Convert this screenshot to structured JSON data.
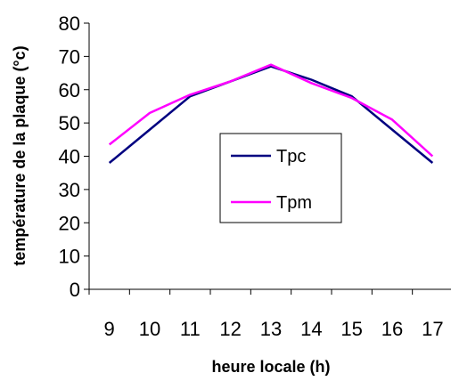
{
  "chart_data": {
    "type": "line",
    "xlabel": "heure locale (h)",
    "ylabel": "température de la plaque (°c)",
    "x": [
      9,
      10,
      11,
      12,
      13,
      14,
      15,
      16,
      17
    ],
    "xticks": [
      "9",
      "10",
      "11",
      "12",
      "13",
      "14",
      "15",
      "16",
      "17"
    ],
    "ylim": [
      0,
      80
    ],
    "yticks": [
      "0",
      "10",
      "20",
      "30",
      "40",
      "50",
      "60",
      "70",
      "80"
    ],
    "grid": false,
    "legend_position": "center",
    "series": [
      {
        "name": "Tpc",
        "color": "#000080",
        "values": [
          38,
          48,
          58,
          62.5,
          67,
          63,
          58,
          48,
          38
        ]
      },
      {
        "name": "Tpm",
        "color": "#ff00ff",
        "values": [
          43.5,
          53,
          58.5,
          62.5,
          67.5,
          62,
          57.5,
          51,
          40
        ]
      }
    ]
  }
}
